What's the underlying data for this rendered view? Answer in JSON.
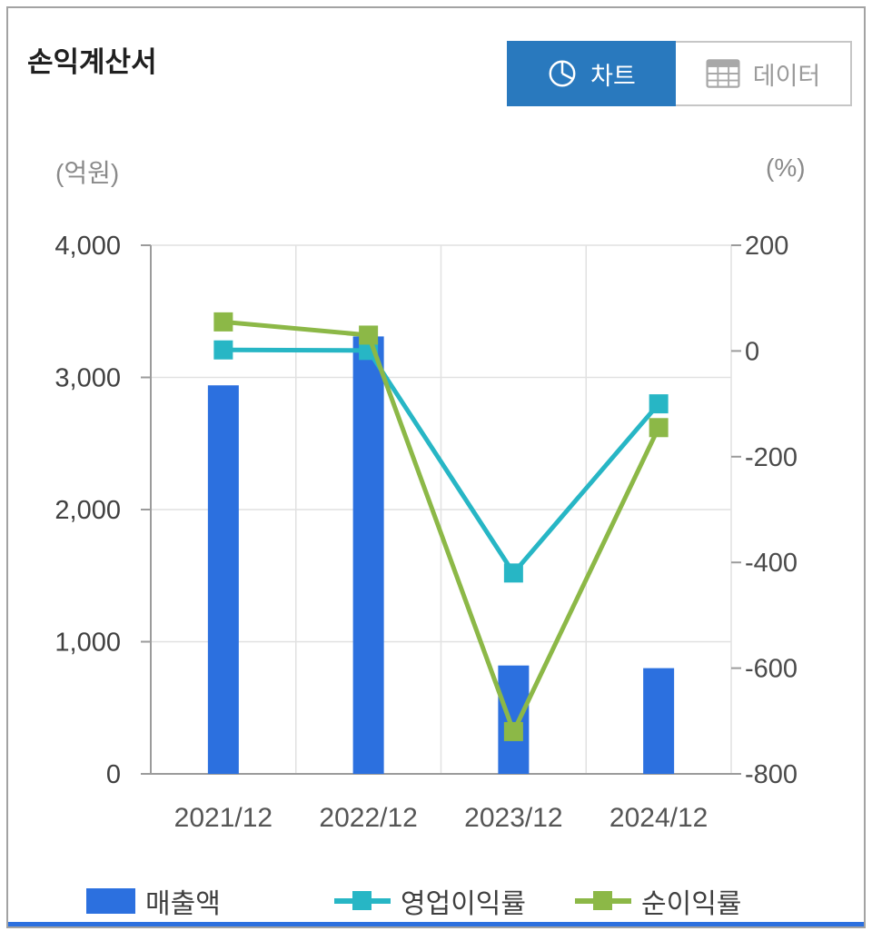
{
  "header": {
    "title": "손익계산서",
    "tabs": [
      {
        "label": "차트",
        "icon": "pie-chart-icon",
        "active": true
      },
      {
        "label": "데이터",
        "icon": "table-icon",
        "active": false
      }
    ]
  },
  "colors": {
    "tab_active_bg": "#2979be",
    "accent_bar": "#2c70df",
    "bar_blue": "#2c70df",
    "line_teal": "#27b6c5",
    "line_green": "#8cb847"
  },
  "chart_data": {
    "type": "combo",
    "title": "손익계산서",
    "categories": [
      "2021/12",
      "2022/12",
      "2023/12",
      "2024/12"
    ],
    "grid": true,
    "legend_position": "bottom",
    "left_axis": {
      "unit": "(억원)",
      "min": 0,
      "max": 4000,
      "ticks": [
        {
          "value": 0,
          "label": "0"
        },
        {
          "value": 1000,
          "label": "1,000"
        },
        {
          "value": 2000,
          "label": "2,000"
        },
        {
          "value": 3000,
          "label": "3,000"
        },
        {
          "value": 4000,
          "label": "4,000"
        }
      ]
    },
    "right_axis": {
      "unit": "(%)",
      "min": -800,
      "max": 200,
      "ticks": [
        {
          "value": 200,
          "label": "200"
        },
        {
          "value": 0,
          "label": "0"
        },
        {
          "value": -200,
          "label": "-200"
        },
        {
          "value": -400,
          "label": "-400"
        },
        {
          "value": -600,
          "label": "-600"
        },
        {
          "value": -800,
          "label": "-800"
        }
      ]
    },
    "series": [
      {
        "name": "매출액",
        "type": "bar",
        "axis": "left",
        "color": "#2c70df",
        "values": [
          2940,
          3310,
          820,
          800
        ]
      },
      {
        "name": "영업이익률",
        "type": "line",
        "axis": "right",
        "color": "#27b6c5",
        "values": [
          2,
          1,
          -420,
          -100
        ]
      },
      {
        "name": "순이익률",
        "type": "line",
        "axis": "right",
        "color": "#8cb847",
        "values": [
          55,
          30,
          -720,
          -145
        ]
      }
    ]
  }
}
